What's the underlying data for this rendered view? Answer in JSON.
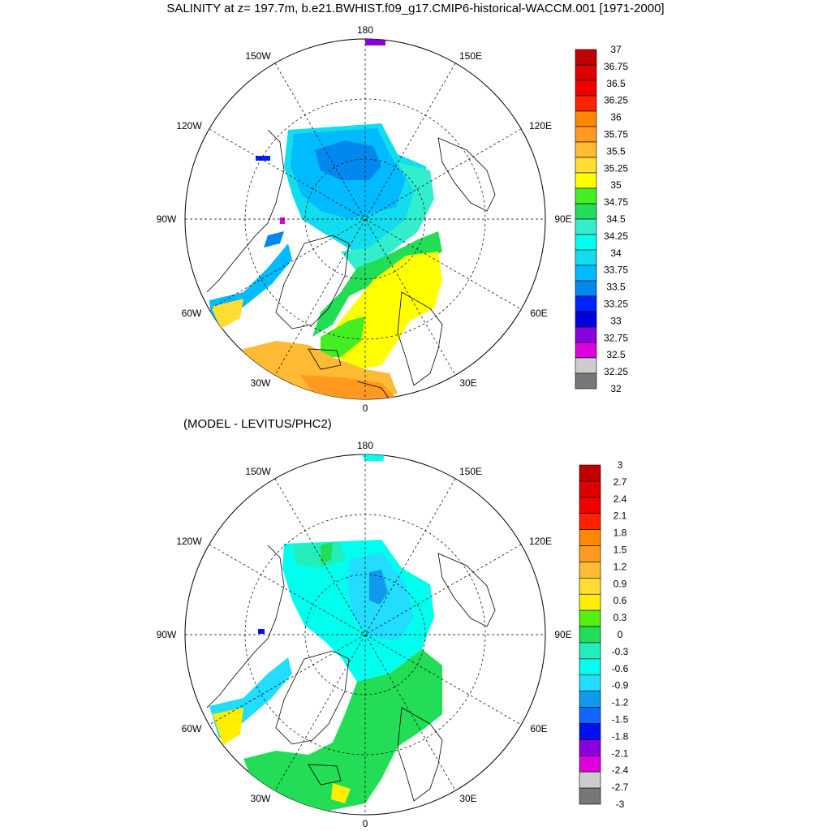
{
  "title": "SALINITY at z= 197.7m, b.e21.BWHIST.f09_g17.CMIP6-historical-WACCM.001 [1971-2000]",
  "subtitle": "(MODEL - LEVITUS/PHC2)",
  "longitude_labels": [
    "180",
    "150E",
    "120E",
    "90E",
    "60E",
    "30E",
    "0",
    "30W",
    "60W",
    "90W",
    "120W",
    "150W"
  ],
  "maps": [
    {
      "name": "salinity",
      "colorbar_labels": [
        "37",
        "36.75",
        "36.5",
        "36.25",
        "36",
        "35.75",
        "35.5",
        "35.25",
        "35",
        "34.75",
        "34.5",
        "34.25",
        "34",
        "33.75",
        "33.5",
        "33.25",
        "33",
        "32.75",
        "32.5",
        "32.25",
        "32"
      ],
      "colorbar_colors": [
        "#c00000",
        "#dd0000",
        "#ee0000",
        "#ff2200",
        "#ff8800",
        "#ff9922",
        "#ffbb33",
        "#ffdd33",
        "#ffff00",
        "#44ee22",
        "#22dd55",
        "#33eecc",
        "#00ffee",
        "#11ddee",
        "#00bbff",
        "#0088ee",
        "#0022ff",
        "#0000dd",
        "#8800dd",
        "#dd00dd",
        "#cccccc",
        "#777777"
      ]
    },
    {
      "name": "difference",
      "colorbar_labels": [
        "3",
        "2.7",
        "2.4",
        "2.1",
        "1.8",
        "1.5",
        "1.2",
        "0.9",
        "0.6",
        "0.3",
        "0",
        "-0.3",
        "-0.6",
        "-0.9",
        "-1.2",
        "-1.5",
        "-1.8",
        "-2.1",
        "-2.4",
        "-2.7",
        "-3"
      ],
      "colorbar_colors": [
        "#c00000",
        "#dd0000",
        "#ee0000",
        "#ff2200",
        "#ff8800",
        "#ff9922",
        "#ffbb33",
        "#ffdd33",
        "#ffee00",
        "#55ee11",
        "#22dd55",
        "#22eebb",
        "#00ffee",
        "#22ddff",
        "#1199ee",
        "#1166ff",
        "#0011ee",
        "#8800dd",
        "#dd00dd",
        "#cccccc",
        "#777777"
      ]
    }
  ]
}
